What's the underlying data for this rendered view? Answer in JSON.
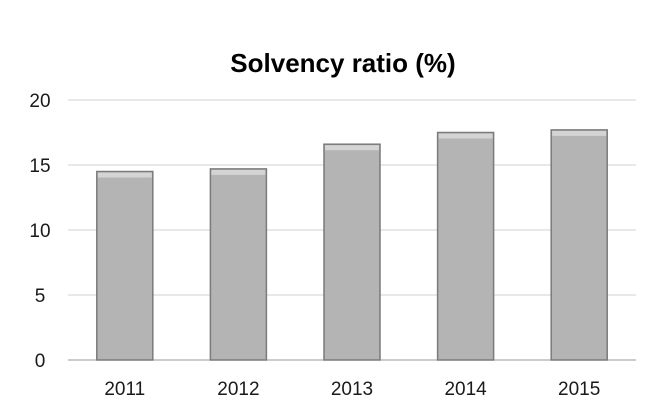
{
  "chart_data": {
    "type": "bar",
    "title": "Solvency ratio (%)",
    "xlabel": "",
    "ylabel": "",
    "categories": [
      "2011",
      "2012",
      "2013",
      "2014",
      "2015"
    ],
    "values": [
      14.5,
      14.7,
      16.6,
      17.5,
      17.7
    ],
    "ylim": [
      0,
      20
    ],
    "yticks": [
      "0",
      "5",
      "10",
      "15",
      "20"
    ],
    "grid": true,
    "colors": {
      "bar": "#b4b4b4",
      "bar_edge": "#7a7a7a",
      "bar_top": "#d4d4d4",
      "grid": "#d0d0d0",
      "axis": "#9a9a9a"
    }
  }
}
